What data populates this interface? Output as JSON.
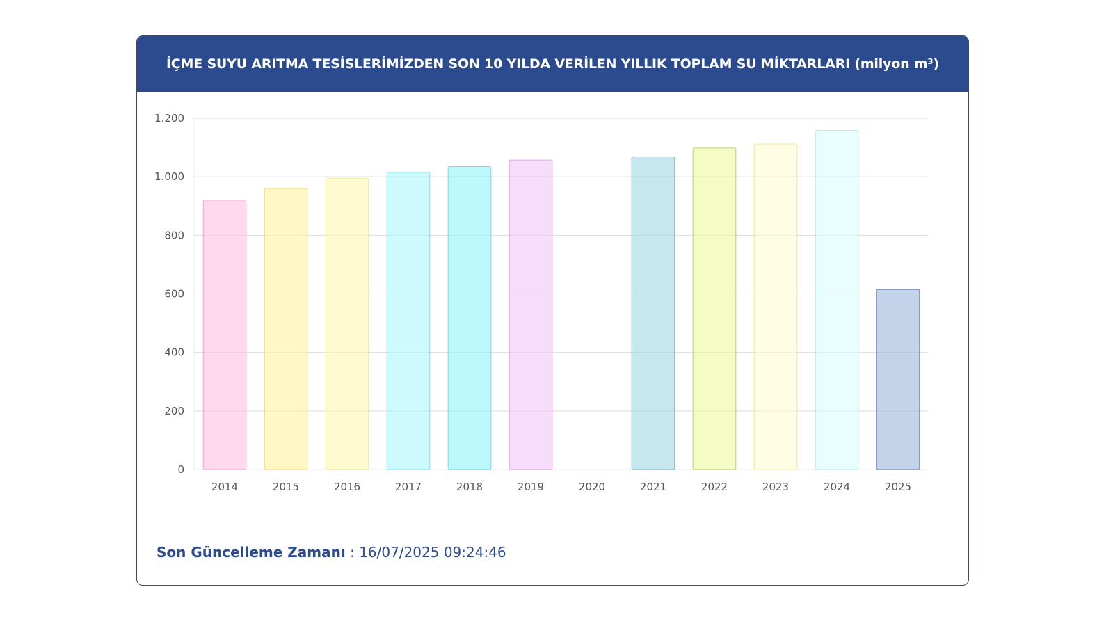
{
  "title": "İÇME SUYU ARITMA TESİSLERİMİZDEN SON 10 YILDA VERİLEN YILLIK TOPLAM SU MİKTARLARI (milyon m³)",
  "footer": {
    "label": "Son Güncelleme Zamanı",
    "separator": " : ",
    "value": "16/07/2025 09:24:46"
  },
  "chart_data": {
    "type": "bar",
    "categories": [
      "2014",
      "2015",
      "2016",
      "2017",
      "2018",
      "2019",
      "2020",
      "2021",
      "2022",
      "2023",
      "2024",
      "2025"
    ],
    "values": [
      920,
      960,
      995,
      1015,
      1035,
      1057,
      0,
      1068,
      1098,
      1112,
      1158,
      615
    ],
    "ylim": [
      0,
      1200
    ],
    "yticks": [
      0,
      200,
      400,
      600,
      800,
      1000,
      1200
    ],
    "ytick_labels": [
      "0",
      "200",
      "400",
      "600",
      "800",
      "1.000",
      "1.200"
    ],
    "grid": true,
    "colors": [
      "#ffd9ec",
      "#fff8c4",
      "#fffbcf",
      "#ccfaff",
      "#bdf8fd",
      "#f8dcfc",
      "#ffffff",
      "#c6e7ee",
      "#f5fbc4",
      "#fffde4",
      "#e9fefe",
      "#c3d3ea"
    ],
    "border_colors": [
      "#f0a9c9",
      "#efd77a",
      "#efe69a",
      "#8fdbe6",
      "#80d5e0",
      "#dba7e8",
      "#ffffff",
      "#7eb4c2",
      "#c2cf6e",
      "#ecec9a",
      "#b4eaec",
      "#6f86b6"
    ]
  }
}
